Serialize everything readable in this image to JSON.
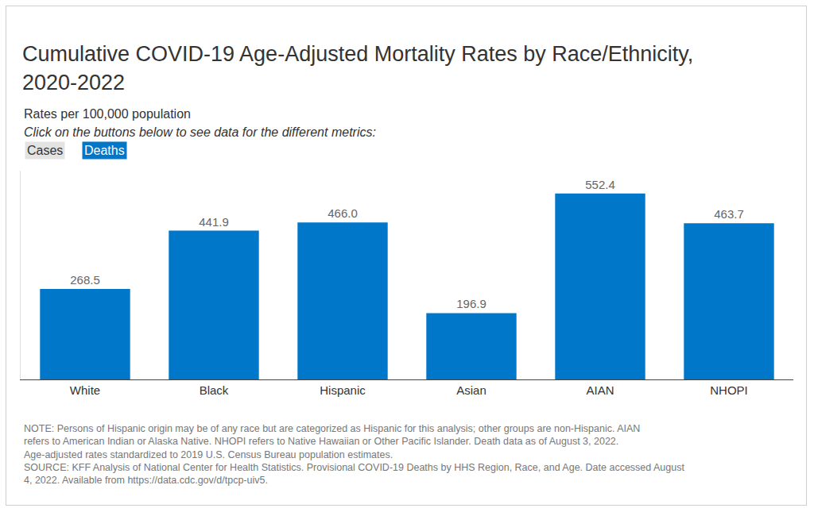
{
  "chart_data": {
    "type": "bar",
    "title": "Cumulative COVID-19 Age-Adjusted Mortality Rates by Race/Ethnicity, 2020-2022",
    "subtitle": "Rates per 100,000 population",
    "annotations": [
      "Click on the buttons below to see data for the different metrics:"
    ],
    "buttons": [
      "Cases",
      "Deaths"
    ],
    "notes": [
      "NOTE: Persons of Hispanic origin may be of any race but are categorized as Hispanic for this analysis; other groups are non-Hispanic. AIAN refers to American Indian or Alaska Native. NHOPI refers to Native Hawaiian or Other Pacific Islander. Death data as of August 3, 2022. Age-adjusted rates standardized to 2019 U.S. Census Bureau population estimates.",
      "SOURCE: KFF Analysis of National Center for Health Statistics. Provisional COVID-19 Deaths by HHS Region, Race, and Age. Date accessed August 4, 2022. Available from https://data.cdc.gov/d/tpcp-uiv5."
    ],
    "categories": [
      "White",
      "Black",
      "Hispanic",
      "Asian",
      "AIAN",
      "NHOPI"
    ],
    "values": [
      268.5,
      441.9,
      466.0,
      196.9,
      552.4,
      463.7
    ],
    "value_labels": [
      "268.5",
      "441.9",
      "466.0",
      "196.9",
      "552.4",
      "463.7"
    ],
    "color": "#0077c8",
    "ylim": [
      0,
      620
    ],
    "grid": false,
    "data_labels": true,
    "tick_labels": "x"
  }
}
